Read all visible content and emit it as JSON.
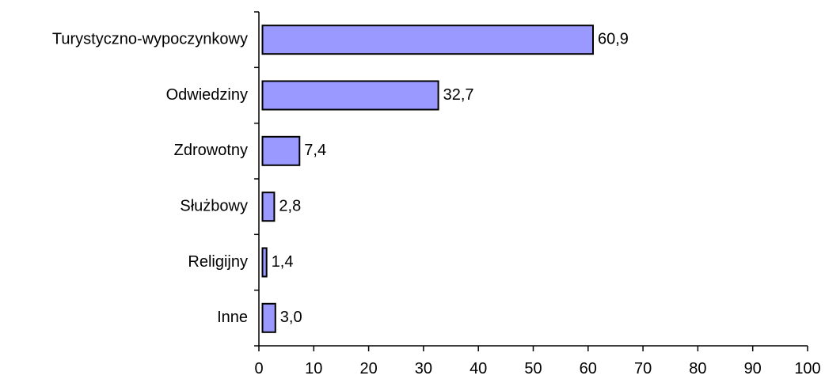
{
  "chart_data": {
    "type": "bar",
    "orientation": "horizontal",
    "title": "",
    "xlabel": "",
    "ylabel": "",
    "categories": [
      "Turystyczno-wypoczynkowy",
      "Odwiedziny",
      "Zdrowotny",
      "Służbowy",
      "Religijny",
      "Inne"
    ],
    "values": [
      60.9,
      32.7,
      7.4,
      2.8,
      1.4,
      3.0
    ],
    "value_labels": [
      "60,9",
      "32,7",
      "7,4",
      "2,8",
      "1,4",
      "3,0"
    ],
    "xlim": [
      0,
      100
    ],
    "x_ticks": [
      0,
      10,
      20,
      30,
      40,
      50,
      60,
      70,
      80,
      90,
      100
    ],
    "grid": false,
    "legend": "none",
    "colors": {
      "bar_fill": "#9999FF",
      "bar_stroke": "#000000",
      "axis": "#000000"
    }
  }
}
